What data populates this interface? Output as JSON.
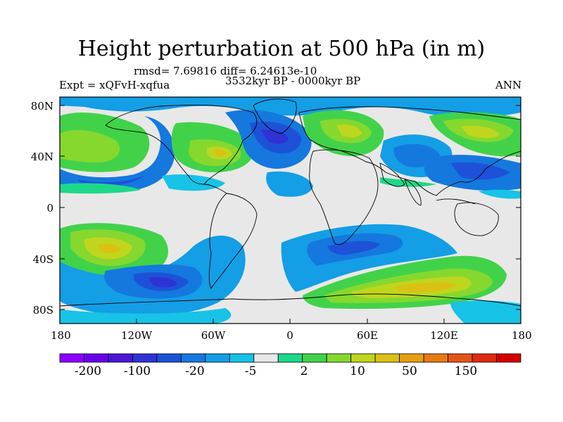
{
  "title": "Height perturbation at 500 hPa (in m)",
  "stats": "rmsd= 7.69816 diff= 6.24613e-10",
  "period": "3532kyr BP - 0000kyr BP",
  "experiment": "Expt = xQFvH-xqfua",
  "season": "ANN",
  "lat_labels": [
    "80N",
    "40N",
    "0",
    "40S",
    "80S"
  ],
  "lon_labels": [
    "180",
    "120W",
    "60W",
    "0",
    "60E",
    "120E",
    "180"
  ],
  "colorbar": {
    "tick_labels": [
      "-200",
      "-100",
      "-20",
      "-5",
      "2",
      "10",
      "50",
      "150"
    ],
    "colors": [
      "#8b00ff",
      "#6a00ea",
      "#4b17d6",
      "#2f33d4",
      "#1d52d8",
      "#1578de",
      "#139ee6",
      "#17c3e6",
      "#e8e8e8",
      "#1ed88a",
      "#42d24a",
      "#86d82e",
      "#bfd61e",
      "#dac113",
      "#e5a011",
      "#e67b14",
      "#e45515",
      "#dd2b14",
      "#d60000"
    ]
  }
}
